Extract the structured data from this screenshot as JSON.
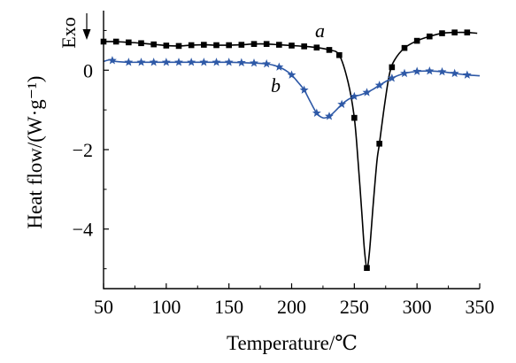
{
  "chart_data": {
    "type": "line",
    "xlabel": "Temperature/℃",
    "ylabel": "Heat flow/(W·g⁻¹)",
    "exo_label": "Exo",
    "xlim": [
      50,
      350
    ],
    "ylim": [
      -5.5,
      1.5
    ],
    "x_ticks": [
      50,
      100,
      150,
      200,
      250,
      300,
      350
    ],
    "x_tick_labels": [
      "50",
      "100",
      "150",
      "200",
      "250",
      "300",
      "350"
    ],
    "y_ticks": [
      0,
      -2,
      -4
    ],
    "y_tick_labels": [
      "0",
      "−2",
      "−4"
    ],
    "grid": false,
    "series": [
      {
        "name": "a",
        "color": "#000000",
        "marker": "square",
        "points": [
          [
            50,
            0.72
          ],
          [
            60,
            0.72
          ],
          [
            70,
            0.7
          ],
          [
            80,
            0.68
          ],
          [
            90,
            0.65
          ],
          [
            100,
            0.62
          ],
          [
            110,
            0.61
          ],
          [
            120,
            0.63
          ],
          [
            130,
            0.64
          ],
          [
            140,
            0.63
          ],
          [
            150,
            0.63
          ],
          [
            160,
            0.64
          ],
          [
            170,
            0.66
          ],
          [
            180,
            0.66
          ],
          [
            190,
            0.64
          ],
          [
            200,
            0.62
          ],
          [
            210,
            0.6
          ],
          [
            220,
            0.57
          ],
          [
            230,
            0.51
          ],
          [
            238,
            0.38
          ],
          [
            245,
            -0.3
          ],
          [
            250,
            -1.2
          ],
          [
            253,
            -2.3
          ],
          [
            256,
            -3.6
          ],
          [
            258,
            -4.5
          ],
          [
            260,
            -4.98
          ],
          [
            262,
            -4.6
          ],
          [
            265,
            -3.4
          ],
          [
            268,
            -2.3
          ],
          [
            270,
            -1.85
          ],
          [
            274,
            -0.9
          ],
          [
            278,
            -0.1
          ],
          [
            282,
            0.25
          ],
          [
            290,
            0.56
          ],
          [
            300,
            0.74
          ],
          [
            310,
            0.85
          ],
          [
            320,
            0.93
          ],
          [
            330,
            0.95
          ],
          [
            340,
            0.95
          ],
          [
            348,
            0.93
          ]
        ],
        "marker_x": [
          50,
          60,
          70,
          80,
          90,
          100,
          110,
          120,
          130,
          140,
          150,
          160,
          170,
          180,
          190,
          200,
          210,
          220,
          230,
          238,
          250,
          260,
          270,
          280,
          290,
          300,
          310,
          320,
          330,
          340
        ]
      },
      {
        "name": "b",
        "color": "#2e59a7",
        "marker": "star",
        "points": [
          [
            50,
            0.22
          ],
          [
            55,
            0.26
          ],
          [
            60,
            0.22
          ],
          [
            70,
            0.2
          ],
          [
            80,
            0.2
          ],
          [
            90,
            0.2
          ],
          [
            100,
            0.2
          ],
          [
            110,
            0.2
          ],
          [
            120,
            0.2
          ],
          [
            130,
            0.2
          ],
          [
            140,
            0.2
          ],
          [
            150,
            0.2
          ],
          [
            160,
            0.19
          ],
          [
            170,
            0.18
          ],
          [
            180,
            0.16
          ],
          [
            185,
            0.13
          ],
          [
            190,
            0.08
          ],
          [
            195,
            0.0
          ],
          [
            200,
            -0.12
          ],
          [
            205,
            -0.3
          ],
          [
            210,
            -0.5
          ],
          [
            215,
            -0.8
          ],
          [
            220,
            -1.08
          ],
          [
            225,
            -1.2
          ],
          [
            230,
            -1.16
          ],
          [
            235,
            -1.02
          ],
          [
            240,
            -0.86
          ],
          [
            245,
            -0.74
          ],
          [
            250,
            -0.66
          ],
          [
            255,
            -0.62
          ],
          [
            260,
            -0.56
          ],
          [
            265,
            -0.48
          ],
          [
            270,
            -0.38
          ],
          [
            280,
            -0.2
          ],
          [
            290,
            -0.08
          ],
          [
            300,
            -0.03
          ],
          [
            310,
            -0.02
          ],
          [
            320,
            -0.04
          ],
          [
            330,
            -0.08
          ],
          [
            340,
            -0.12
          ],
          [
            350,
            -0.14
          ]
        ],
        "marker_x": [
          57,
          70,
          80,
          90,
          100,
          110,
          120,
          130,
          140,
          150,
          160,
          170,
          180,
          190,
          200,
          210,
          220,
          230,
          240,
          250,
          260,
          270,
          280,
          290,
          300,
          310,
          320,
          330,
          340
        ]
      }
    ]
  }
}
